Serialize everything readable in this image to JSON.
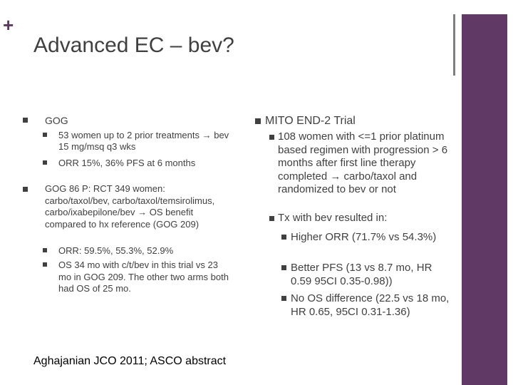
{
  "slide": {
    "title": "Advanced EC – bev?",
    "left_column": [
      {
        "text": "GOG",
        "items": [
          {
            "text": "53 women up to 2 prior treatments → bev 15 mg/msq q3 wks"
          },
          {
            "text": "ORR 15%, 36% PFS at 6 months"
          }
        ]
      },
      {
        "text": "GOG 86 P: RCT 349 women: carbo/taxol/bev, carbo/taxol/temsirolimus, carbo/ixabepilone/bev → OS benefit compared to hx reference (GOG 209)",
        "items": [
          {
            "text": "ORR: 59.5%, 55.3%, 52.9%"
          },
          {
            "text": "OS 34 mo with c/t/bev in this trial vs 23 mo in GOG 209. The other two arms both had OS of 25 mo."
          }
        ]
      }
    ],
    "right_column": [
      {
        "text": "MITO END-2 Trial",
        "items": [
          {
            "text": "108 women with <=1 prior platinum based regimen with progression > 6 months after first line therapy completed → carbo/taxol and randomized to bev or not",
            "items": []
          },
          {
            "text": "Tx with bev resulted in:",
            "items": [
              {
                "text": "Higher ORR (71.7% vs 54.3%)"
              },
              {
                "text": "Better PFS (13 vs 8.7 mo, HR 0.59 95CI 0.35-0.98))"
              },
              {
                "text": "No OS difference (22.5 vs 18 mo, HR 0.65, 95CI 0.31-1.36)"
              }
            ]
          }
        ]
      }
    ],
    "footer": "Aghajanian JCO 2011; ASCO abstract"
  }
}
